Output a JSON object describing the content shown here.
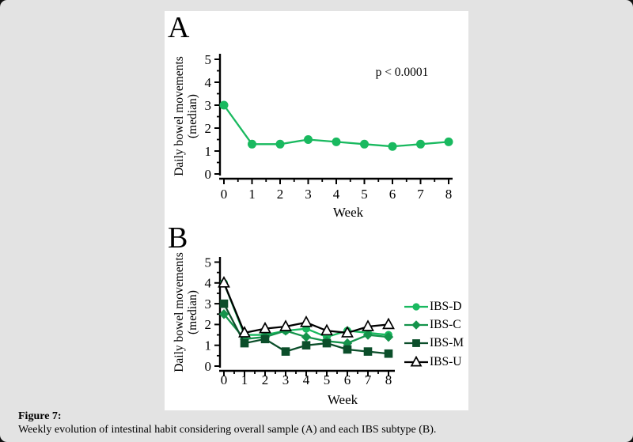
{
  "page": {
    "background": "#e3e3e3",
    "panel_background": "#ffffff"
  },
  "figure": {
    "label": "Figure 7:",
    "caption": "Weekly evolution of intestinal habit considering overall sample (A) and each IBS subtype (B)."
  },
  "colors": {
    "ibs_d": "#19b95f",
    "ibs_c": "#14934b",
    "ibs_m": "#0b4e2a",
    "ibs_u": "#000000",
    "axis": "#000000"
  },
  "chart_data": [
    {
      "type": "line",
      "panel_label": "A",
      "xlabel": "Week",
      "ylabel": "Daily bowel movements (median)",
      "ylabel_line1": "Daily bowel movements",
      "ylabel_line2": "(median)",
      "annotation": "p < 0.0001",
      "x": [
        0,
        1,
        2,
        3,
        4,
        5,
        6,
        7,
        8
      ],
      "xlim": [
        0,
        8
      ],
      "ylim": [
        0,
        5
      ],
      "yticks": [
        0,
        1,
        2,
        3,
        4,
        5
      ],
      "grid": false,
      "legend_position": "none",
      "series": [
        {
          "name": "Overall sample",
          "marker": "circle",
          "color": "#19b95f",
          "values": [
            3.0,
            1.3,
            1.3,
            1.5,
            1.4,
            1.3,
            1.2,
            1.3,
            1.4
          ]
        }
      ]
    },
    {
      "type": "line",
      "panel_label": "B",
      "xlabel": "Week",
      "ylabel": "Daily bowel movements (median)",
      "ylabel_line1": "Daily bowel movements",
      "ylabel_line2": "(median)",
      "annotation": "",
      "x": [
        0,
        1,
        2,
        3,
        4,
        5,
        6,
        7,
        8
      ],
      "xlim": [
        0,
        8
      ],
      "ylim": [
        0,
        5
      ],
      "yticks": [
        0,
        1,
        2,
        3,
        4,
        5
      ],
      "grid": false,
      "legend_position": "right",
      "series": [
        {
          "name": "IBS-D",
          "marker": "circle",
          "color": "#19b95f",
          "values": [
            4.0,
            1.5,
            1.5,
            1.7,
            1.8,
            1.4,
            1.7,
            1.6,
            1.5
          ]
        },
        {
          "name": "IBS-C",
          "marker": "diamond",
          "color": "#14934b",
          "values": [
            2.5,
            1.3,
            1.4,
            1.7,
            1.4,
            1.2,
            1.1,
            1.5,
            1.4
          ]
        },
        {
          "name": "IBS-M",
          "marker": "square",
          "color": "#0b4e2a",
          "values": [
            3.0,
            1.1,
            1.3,
            0.7,
            1.0,
            1.1,
            0.8,
            0.7,
            0.6
          ]
        },
        {
          "name": "IBS-U",
          "marker": "triangle-open",
          "color": "#000000",
          "values": [
            4.0,
            1.6,
            1.8,
            1.9,
            2.1,
            1.7,
            1.6,
            1.9,
            2.0
          ]
        }
      ]
    }
  ]
}
